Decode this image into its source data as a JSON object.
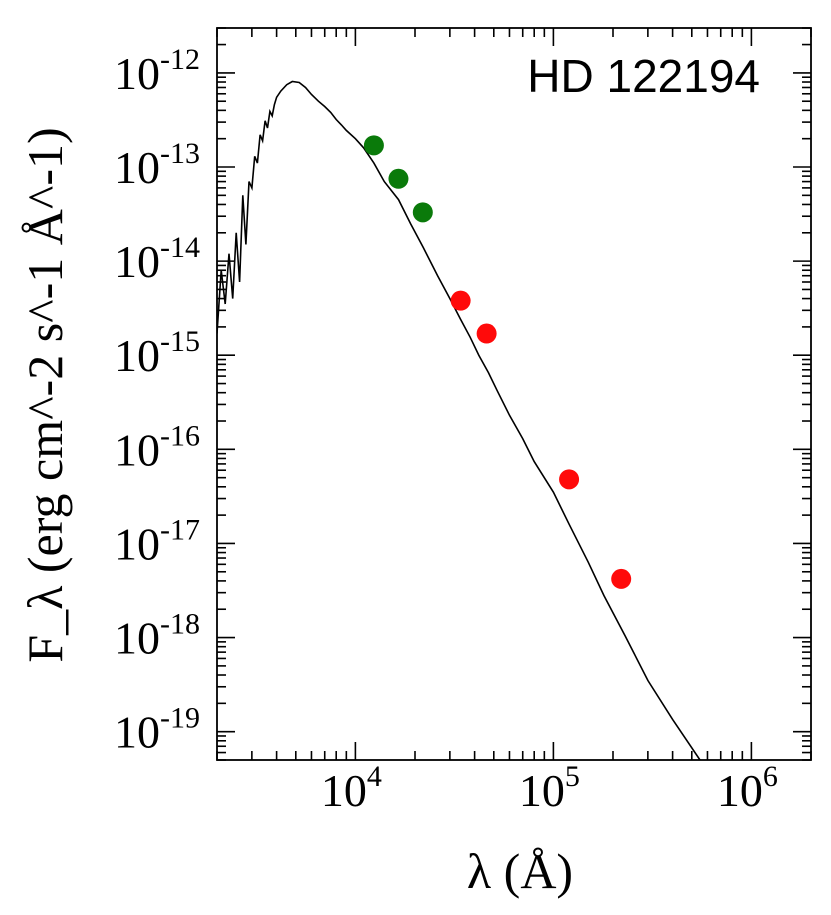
{
  "chart_data": {
    "type": "scatter",
    "title": "",
    "annotation": "HD 122194",
    "xlabel": "λ (Å)",
    "ylabel": "F_λ (erg cm^-2 s^-1 Å^-1)",
    "x_scale": "log",
    "y_scale": "log",
    "xlim": [
      2000,
      2000000
    ],
    "ylim": [
      5e-20,
      3e-12
    ],
    "x_tick_labels": [
      {
        "base": "10",
        "exp": "4",
        "value": 10000
      },
      {
        "base": "10",
        "exp": "5",
        "value": 100000
      },
      {
        "base": "10",
        "exp": "6",
        "value": 1000000
      }
    ],
    "y_tick_labels": [
      {
        "base": "10",
        "exp": "-12",
        "value": 1e-12
      },
      {
        "base": "10",
        "exp": "-13",
        "value": 1e-13
      },
      {
        "base": "10",
        "exp": "-14",
        "value": 1e-14
      },
      {
        "base": "10",
        "exp": "-15",
        "value": 1e-15
      },
      {
        "base": "10",
        "exp": "-16",
        "value": 1e-16
      },
      {
        "base": "10",
        "exp": "-17",
        "value": 1e-17
      },
      {
        "base": "10",
        "exp": "-18",
        "value": 1e-18
      },
      {
        "base": "10",
        "exp": "-19",
        "value": 1e-19
      }
    ],
    "grid": false,
    "series": [
      {
        "kind": "line",
        "color": "#000000",
        "x": [
          2000,
          2100,
          2200,
          2300,
          2400,
          2500,
          2600,
          2700,
          2800,
          2900,
          3000,
          3100,
          3200,
          3300,
          3400,
          3500,
          3600,
          3700,
          3800,
          3900,
          4000,
          4200,
          4500,
          4800,
          5200,
          5600,
          6000,
          6500,
          7000,
          7500,
          8000,
          8500,
          9000,
          10000,
          11000,
          12400,
          14000,
          16500,
          19000,
          22000,
          26000,
          30000,
          34000,
          38000,
          42000,
          47000,
          52000,
          60000,
          70000,
          80000,
          100000,
          120000,
          150000,
          180000,
          230000,
          300000,
          400000,
          550000
        ],
        "y": [
          1.7e-15,
          8e-15,
          3.5e-15,
          1.2e-14,
          4e-15,
          2e-14,
          6e-15,
          5e-14,
          1.5e-14,
          7e-14,
          6e-14,
          1.3e-13,
          1.1e-13,
          2.2e-13,
          1.9e-13,
          3.1e-13,
          2.6e-13,
          3.9e-13,
          3.5e-13,
          4.6e-13,
          5.5e-13,
          6.4e-13,
          7.5e-13,
          8.1e-13,
          7.9e-13,
          7e-13,
          5.9e-13,
          5e-13,
          4.4e-13,
          3.8e-13,
          3.2e-13,
          2.8e-13,
          2.45e-13,
          2e-13,
          1.6e-13,
          1.1e-13,
          7e-14,
          4.5e-14,
          2.5e-14,
          1.4e-14,
          7e-15,
          4e-15,
          2.4e-15,
          1.55e-15,
          1e-15,
          6.5e-16,
          4.2e-16,
          2.3e-16,
          1.3e-16,
          7.4e-17,
          3.5e-17,
          1.6e-17,
          6.3e-18,
          2.8e-18,
          1.05e-18,
          3.5e-19,
          1.35e-19,
          5e-20
        ]
      },
      {
        "kind": "scatter",
        "color": "#0a7a0a",
        "x": [
          12400,
          16500,
          21900
        ],
        "y": [
          1.7e-13,
          7.5e-14,
          3.3e-14
        ]
      },
      {
        "kind": "scatter",
        "color": "#ff0a0a",
        "x": [
          34000,
          46000,
          120000,
          220000
        ],
        "y": [
          3.8e-15,
          1.7e-15,
          4.8e-17,
          4.2e-18
        ]
      }
    ]
  }
}
